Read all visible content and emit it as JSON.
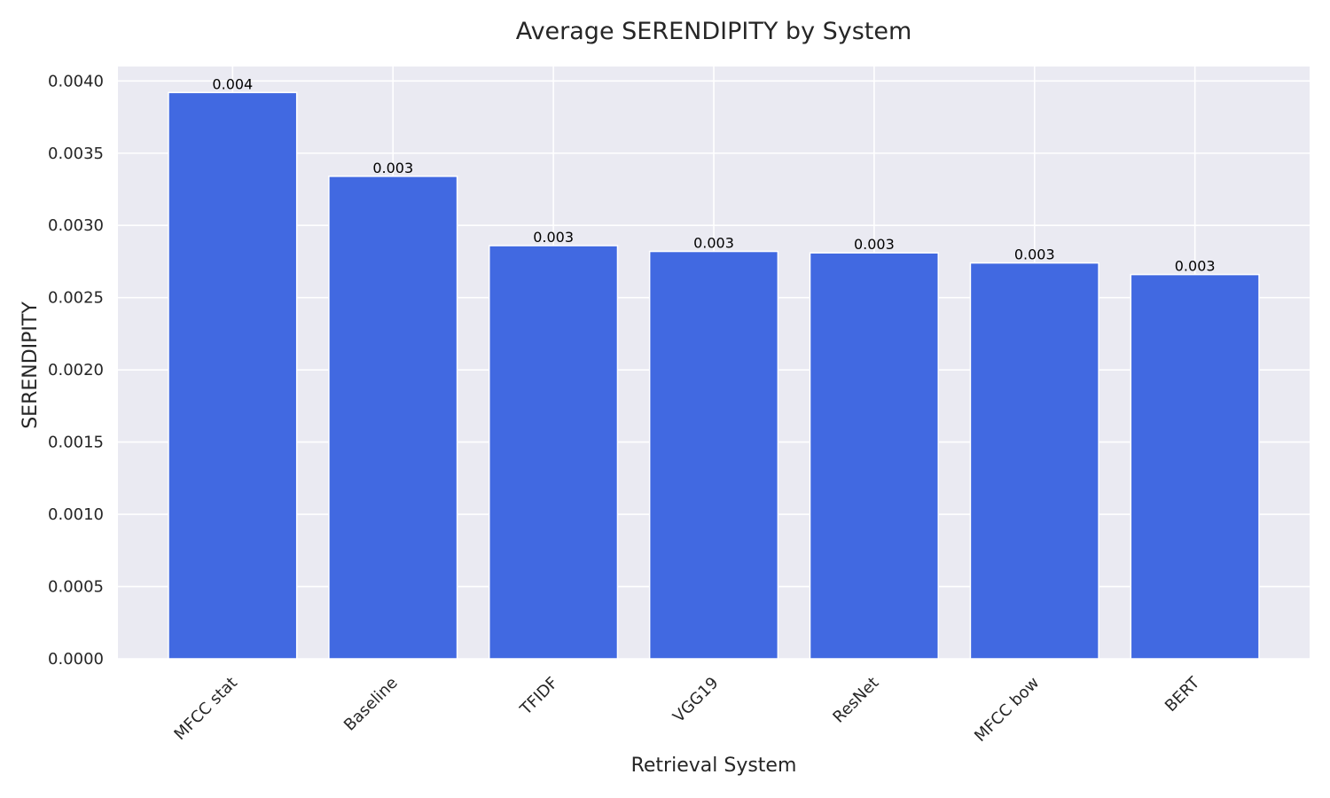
{
  "chart_data": {
    "type": "bar",
    "title": "Average SERENDIPITY by System",
    "xlabel": "Retrieval System",
    "ylabel": "SERENDIPITY",
    "categories": [
      "MFCC stat",
      "Baseline",
      "TFIDF",
      "VGG19",
      "ResNet",
      "MFCC bow",
      "BERT"
    ],
    "values": [
      0.00392,
      0.00334,
      0.00286,
      0.00282,
      0.00281,
      0.00274,
      0.00266
    ],
    "value_labels": [
      "0.004",
      "0.003",
      "0.003",
      "0.003",
      "0.003",
      "0.003",
      "0.003"
    ],
    "ylim": [
      0,
      0.0041
    ],
    "yticks": [
      0,
      0.0005,
      0.001,
      0.0015,
      0.002,
      0.0025,
      0.003,
      0.0035,
      0.004
    ],
    "ytick_labels": [
      "0.0000",
      "0.0005",
      "0.0010",
      "0.0015",
      "0.0020",
      "0.0025",
      "0.0030",
      "0.0035",
      "0.0040"
    ],
    "grid": true,
    "colors": {
      "bar": "#4169e1",
      "background": "#eaeaf2",
      "grid": "#ffffff"
    }
  }
}
